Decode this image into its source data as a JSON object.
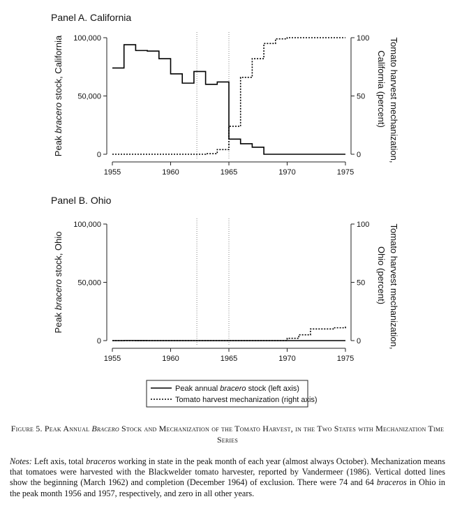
{
  "chart_data": [
    {
      "type": "line",
      "title": "Panel A. California",
      "ylabel_left": "Peak bracero stock, California",
      "ylabel_right_line1": "Tomato harvest mechanization,",
      "ylabel_right_line2": "California (percent)",
      "xlim": [
        1955,
        1975
      ],
      "ylim_left": [
        0,
        100000
      ],
      "ylim_right": [
        0,
        100
      ],
      "x_ticks": [
        "1955",
        "1960",
        "1965",
        "1970",
        "1975"
      ],
      "y_ticks_left": [
        "0",
        "50,000",
        "100,000"
      ],
      "y_ticks_right": [
        "0",
        "50",
        "100"
      ],
      "vlines": [
        1962.25,
        1965.0
      ],
      "series": [
        {
          "name": "Peak annual bracero stock (left axis)",
          "axis": "left",
          "style": "solid",
          "x": [
            1955,
            1956,
            1957,
            1958,
            1959,
            1960,
            1961,
            1962,
            1963,
            1964,
            1965,
            1966,
            1967,
            1968,
            1969,
            1970,
            1971,
            1972,
            1973,
            1974,
            1975
          ],
          "values": [
            74000,
            94000,
            89000,
            88500,
            82000,
            69000,
            61000,
            71000,
            60000,
            62000,
            13000,
            9000,
            6000,
            0,
            0,
            0,
            0,
            0,
            0,
            0,
            0
          ]
        },
        {
          "name": "Tomato harvest mechanization (right axis)",
          "axis": "right",
          "style": "dotted",
          "x": [
            1955,
            1956,
            1957,
            1958,
            1959,
            1960,
            1961,
            1962,
            1963,
            1964,
            1965,
            1966,
            1967,
            1968,
            1969,
            1970,
            1971,
            1972,
            1973,
            1974,
            1975
          ],
          "values": [
            0,
            0,
            0,
            0,
            0,
            0,
            0,
            0,
            0.5,
            4,
            24,
            66,
            82,
            95,
            99,
            100,
            100,
            100,
            100,
            100,
            100
          ]
        }
      ]
    },
    {
      "type": "line",
      "title": "Panel B. Ohio",
      "ylabel_left": "Peak bracero stock, Ohio",
      "ylabel_right_line1": "Tomato harvest mechanization,",
      "ylabel_right_line2": "Ohio (percent)",
      "xlim": [
        1955,
        1975
      ],
      "ylim_left": [
        0,
        100000
      ],
      "ylim_right": [
        0,
        100
      ],
      "x_ticks": [
        "1955",
        "1960",
        "1965",
        "1970",
        "1975"
      ],
      "y_ticks_left": [
        "0",
        "50,000",
        "100,000"
      ],
      "y_ticks_right": [
        "0",
        "50",
        "100"
      ],
      "vlines": [
        1962.25,
        1965.0
      ],
      "series": [
        {
          "name": "Peak annual bracero stock (left axis)",
          "axis": "left",
          "style": "solid",
          "x": [
            1955,
            1956,
            1957,
            1958,
            1959,
            1960,
            1961,
            1962,
            1963,
            1964,
            1965,
            1966,
            1967,
            1968,
            1969,
            1970,
            1971,
            1972,
            1973,
            1974,
            1975
          ],
          "values": [
            0,
            74,
            64,
            0,
            0,
            0,
            0,
            0,
            0,
            0,
            0,
            0,
            0,
            0,
            0,
            0,
            0,
            0,
            0,
            0,
            0
          ]
        },
        {
          "name": "Tomato harvest mechanization (right axis)",
          "axis": "right",
          "style": "dotted",
          "x": [
            1955,
            1956,
            1957,
            1958,
            1959,
            1960,
            1961,
            1962,
            1963,
            1964,
            1965,
            1966,
            1967,
            1968,
            1969,
            1970,
            1971,
            1972,
            1973,
            1974,
            1975
          ],
          "values": [
            0,
            0,
            0,
            0,
            0,
            0,
            0,
            0,
            0,
            0,
            0,
            0,
            0,
            0,
            0,
            2,
            5,
            10,
            10,
            11,
            13
          ]
        }
      ]
    }
  ],
  "legend": {
    "solid_pre": "Peak annual ",
    "solid_italic": "bracero",
    "solid_post": " stock (left axis)",
    "dotted": "Tomato harvest mechanization (right axis)"
  },
  "caption": {
    "pre": "Figure 5. Peak Annual ",
    "italic": "Bracero",
    "post": " Stock and Mechanization of the Tomato Harvest, in the Two States with Mechanization Time Series"
  },
  "notes": {
    "lead": "Notes:",
    "t1": " Left axis, total ",
    "i1": "braceros",
    "t2": " working in state in the peak month of each year (almost always October). Mechanization means that tomatoes were harvested with the Blackwelder tomato harvester, reported by Vandermeer (1986). Vertical dotted lines show the beginning (March 1962) and completion (December 1964) of exclusion. There were 74 and 64 ",
    "i2": "braceros",
    "t3": " in Ohio in the peak month 1956 and 1957, respectively, and zero in all other years."
  }
}
